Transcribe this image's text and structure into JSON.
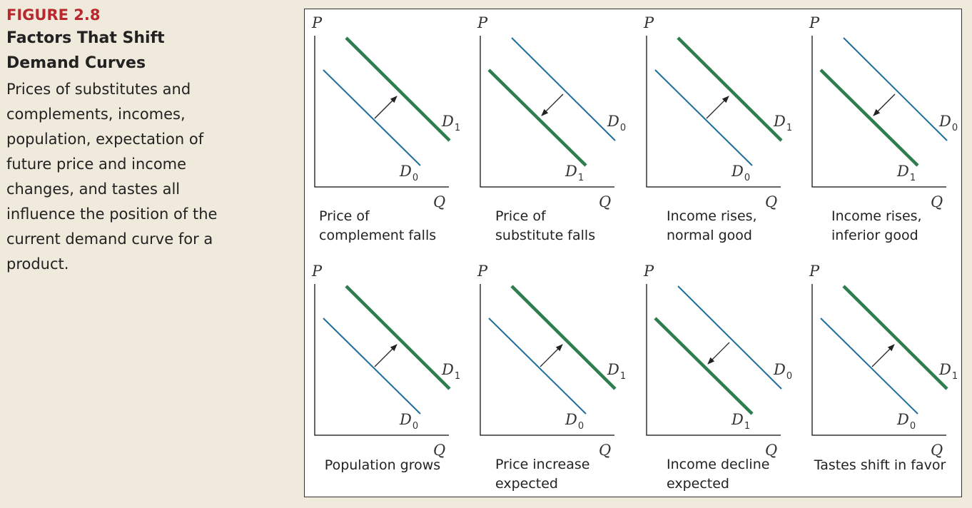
{
  "figure": {
    "number": "FIGURE 2.8",
    "title_line1": "Factors That Shift",
    "title_line2": "Demand Curves",
    "desc_lines": [
      "Prices of substitutes and",
      "complements, incomes,",
      "population, expectation of",
      "future price and income",
      "changes, and tastes all",
      "influence the position of the",
      "current demand curve for a",
      "product."
    ]
  },
  "axes": {
    "y_label": "P",
    "x_label": "Q"
  },
  "curve_labels": {
    "letter": "D",
    "initial_sub": "0",
    "new_sub": "1"
  },
  "colors": {
    "initial_curve": "#1f6e9c",
    "new_curve": "#2e7d4f",
    "accent": "#b8282e"
  },
  "panels": [
    {
      "caption": [
        "Price of",
        "complement falls"
      ],
      "shift": "right"
    },
    {
      "caption": [
        "Price of",
        "substitute falls"
      ],
      "shift": "left"
    },
    {
      "caption": [
        "Income rises,",
        "normal good"
      ],
      "shift": "right"
    },
    {
      "caption": [
        "Income rises,",
        "inferior good"
      ],
      "shift": "left"
    },
    {
      "caption": [
        "Population grows"
      ],
      "shift": "right"
    },
    {
      "caption": [
        "Price increase",
        "expected"
      ],
      "shift": "right"
    },
    {
      "caption": [
        "Income decline",
        "expected"
      ],
      "shift": "left"
    },
    {
      "caption": [
        "Tastes shift in favor"
      ],
      "shift": "right"
    }
  ]
}
